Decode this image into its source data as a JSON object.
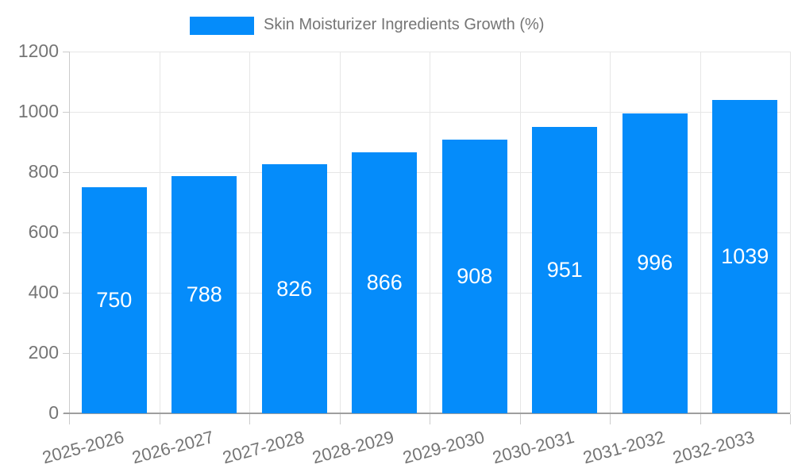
{
  "legend": {
    "label": "Skin Moisturizer Ingredients Growth (%)"
  },
  "chart_data": {
    "type": "bar",
    "title": "Skin Moisturizer Ingredients Growth (%)",
    "categories": [
      "2025-2026",
      "2026-2027",
      "2027-2028",
      "2028-2029",
      "2029-2030",
      "2030-2031",
      "2031-2032",
      "2032-2033"
    ],
    "values": [
      750,
      788,
      826,
      866,
      908,
      951,
      996,
      1039
    ],
    "value_labels": [
      "750",
      "788",
      "826",
      "866",
      "908",
      "951",
      "996",
      "1039"
    ],
    "xlabel": "",
    "ylabel": "",
    "ylim": [
      0,
      1200
    ],
    "yticks": [
      0,
      200,
      400,
      600,
      800,
      1000,
      1200
    ],
    "grid": true,
    "legend_position": "top",
    "colors": {
      "bar": "#058cfa",
      "value_label": "#ffffff",
      "axis_text": "#757575",
      "gridline": "#e6e6e6",
      "axis_line": "#9e9e9e",
      "tick": "#cccccc"
    }
  }
}
